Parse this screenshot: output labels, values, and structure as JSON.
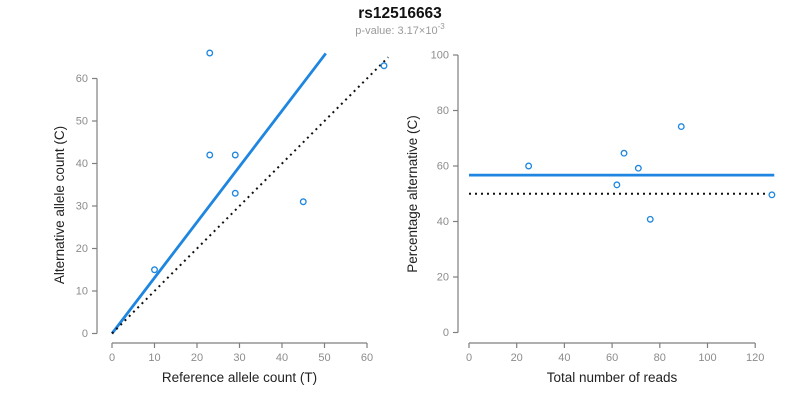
{
  "header": {
    "title": "rs12516663",
    "subtitle_prefix": "p-value: 3.17×10",
    "subtitle_exponent": "-3"
  },
  "colors": {
    "accent_blue": "#1E86E0",
    "line_black": "#111111",
    "axis_gray": "#7f7f7f",
    "tick_label_gray": "#8c8c8c",
    "label_black": "#222222",
    "subtitle_gray": "#9a9a9a"
  },
  "chart_data": [
    {
      "type": "scatter",
      "title": "rs12516663",
      "xlabel": "Reference allele count (T)",
      "ylabel": "Alternative allele count (C)",
      "xlim": [
        0,
        65
      ],
      "ylim": [
        0,
        67
      ],
      "grid": false,
      "xticks": [
        0,
        10,
        20,
        30,
        40,
        50,
        60
      ],
      "yticks": [
        0,
        10,
        20,
        30,
        40,
        50,
        60
      ],
      "points": [
        [
          10,
          15
        ],
        [
          23,
          42
        ],
        [
          23,
          66
        ],
        [
          29,
          33
        ],
        [
          29,
          42
        ],
        [
          45,
          31
        ],
        [
          64,
          63
        ]
      ],
      "lines": [
        {
          "name": "fitted-ratio-line",
          "style": "solid",
          "color_key": "accent_blue",
          "x1": 0,
          "y1": 0,
          "x2": 50.3,
          "y2": 65.9
        },
        {
          "name": "identity-line",
          "style": "dotted",
          "color_key": "line_black",
          "x1": 0,
          "y1": 0,
          "x2": 65,
          "y2": 65
        }
      ]
    },
    {
      "type": "scatter",
      "title": "rs12516663",
      "xlabel": "Total number of reads",
      "ylabel": "Percentage alternative (C)",
      "xlim": [
        0,
        130
      ],
      "ylim": [
        0,
        100
      ],
      "grid": false,
      "xticks": [
        0,
        20,
        40,
        60,
        80,
        100,
        120
      ],
      "yticks": [
        0,
        20,
        40,
        60,
        80,
        100
      ],
      "points": [
        [
          25,
          60
        ],
        [
          62,
          53.2
        ],
        [
          65,
          64.6
        ],
        [
          71,
          59.2
        ],
        [
          76,
          40.8
        ],
        [
          89,
          74.2
        ],
        [
          127,
          49.6
        ]
      ],
      "lines": [
        {
          "name": "mean-percentage-line",
          "style": "solid",
          "color_key": "accent_blue",
          "x1": 0,
          "y1": 56.7,
          "x2": 128,
          "y2": 56.7
        },
        {
          "name": "expected-50pct-line",
          "style": "dotted",
          "color_key": "line_black",
          "x1": 0,
          "y1": 50,
          "x2": 125,
          "y2": 50
        }
      ]
    }
  ]
}
